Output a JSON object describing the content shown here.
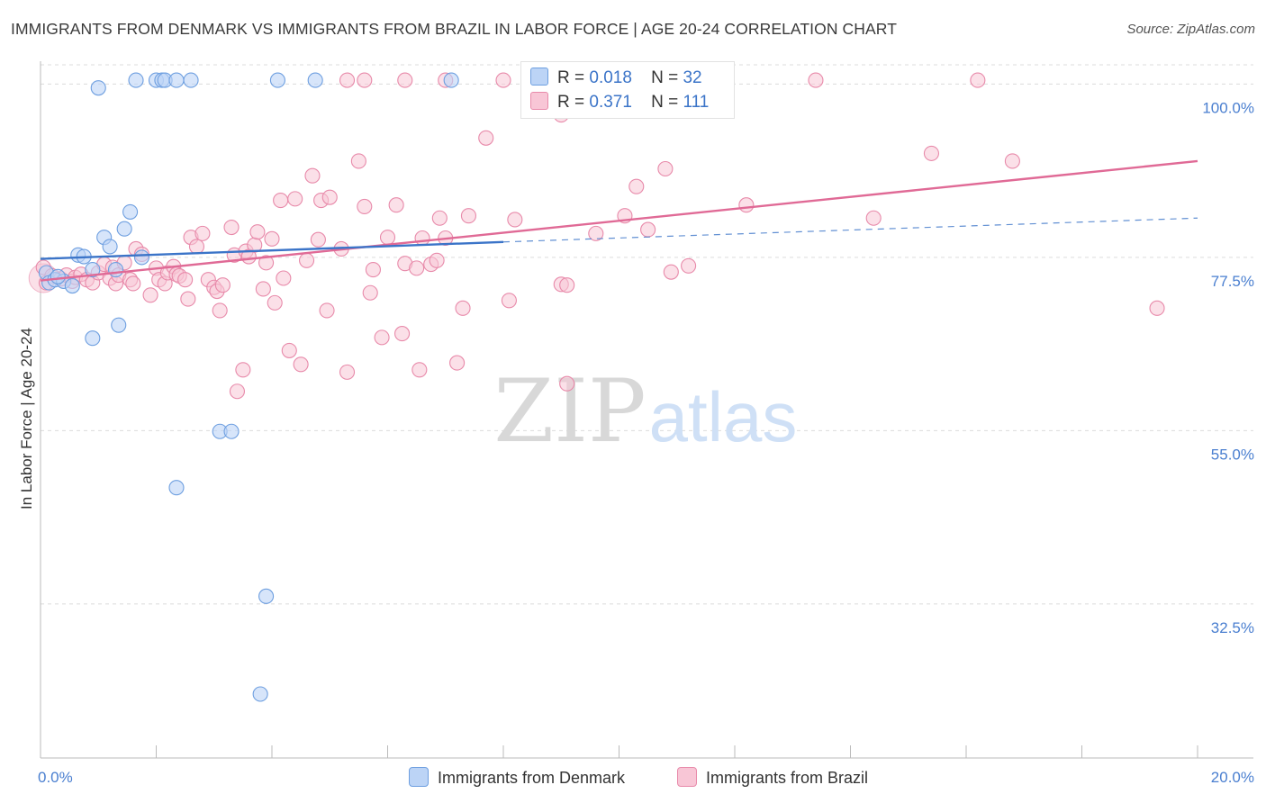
{
  "title": "IMMIGRANTS FROM DENMARK VS IMMIGRANTS FROM BRAZIL IN LABOR FORCE | AGE 20-24 CORRELATION CHART",
  "source": "Source: ZipAtlas.com",
  "watermark": {
    "zip": "ZIP",
    "atlas": "atlas"
  },
  "legend_top": {
    "rows": [
      {
        "r_label": "R =",
        "r_value": "0.018",
        "n_label": "N =",
        "n_value": "32"
      },
      {
        "r_label": "R =",
        "r_value": "0.371",
        "n_label": "N =",
        "n_value": "111"
      }
    ]
  },
  "legend_bottom": {
    "denmark": "Immigrants from Denmark",
    "brazil": "Immigrants from Brazil"
  },
  "colors": {
    "denmark_fill": "#bcd4f6",
    "denmark_stroke": "#6e9fe0",
    "denmark_line": "#3b74c8",
    "brazil_fill": "#f8c6d6",
    "brazil_stroke": "#e88aaa",
    "brazil_line": "#e06a96",
    "tick_text": "#4a7fd0"
  },
  "chart_data": {
    "type": "scatter",
    "title": "IMMIGRANTS FROM DENMARK VS IMMIGRANTS FROM BRAZIL IN LABOR FORCE | AGE 20-24 CORRELATION CHART",
    "xlabel": "",
    "ylabel": "In Labor Force | Age 20-24",
    "xlim": [
      0,
      20
    ],
    "ylim": [
      12.5,
      102.5
    ],
    "x_tick_labels": [
      "0.0%",
      "20.0%"
    ],
    "y_ticks": [
      32.5,
      55.0,
      77.5,
      100.0
    ],
    "y_tick_labels": [
      "32.5%",
      "55.0%",
      "77.5%",
      "100.0%"
    ],
    "grid": true,
    "legend": "top-center",
    "series": [
      {
        "name": "Immigrants from Denmark",
        "R": 0.018,
        "N": 32,
        "trend": {
          "x": [
            0,
            8
          ],
          "y": [
            77.3,
            79.5
          ],
          "extended_x": [
            8,
            20
          ],
          "extended_y": [
            79.5,
            82.6
          ]
        },
        "points": [
          [
            0.1,
            75.5
          ],
          [
            0.15,
            74.2
          ],
          [
            0.25,
            74.6
          ],
          [
            0.4,
            74.4
          ],
          [
            0.55,
            73.8
          ],
          [
            0.65,
            77.8
          ],
          [
            0.75,
            77.6
          ],
          [
            0.9,
            75.9
          ],
          [
            0.9,
            67.0
          ],
          [
            1.0,
            99.5
          ],
          [
            1.1,
            80.1
          ],
          [
            1.2,
            78.9
          ],
          [
            1.3,
            75.9
          ],
          [
            1.35,
            68.7
          ],
          [
            1.45,
            81.2
          ],
          [
            1.55,
            83.4
          ],
          [
            1.65,
            100.5
          ],
          [
            1.75,
            77.5
          ],
          [
            2.0,
            100.5
          ],
          [
            2.1,
            100.5
          ],
          [
            2.15,
            100.5
          ],
          [
            2.35,
            100.5
          ],
          [
            2.35,
            47.6
          ],
          [
            2.6,
            100.5
          ],
          [
            3.1,
            54.9
          ],
          [
            3.3,
            54.9
          ],
          [
            3.8,
            20.8
          ],
          [
            3.9,
            33.5
          ],
          [
            4.1,
            100.5
          ],
          [
            4.75,
            100.5
          ],
          [
            7.1,
            100.5
          ],
          [
            0.3,
            75.0
          ]
        ]
      },
      {
        "name": "Immigrants from Brazil",
        "R": 0.371,
        "N": 111,
        "trend": {
          "x": [
            0,
            20
          ],
          "y": [
            74.5,
            90.0
          ]
        },
        "points": [
          [
            0.05,
            76.2
          ],
          [
            0.1,
            74.2
          ],
          [
            0.2,
            75.1
          ],
          [
            0.35,
            74.7
          ],
          [
            0.45,
            75.2
          ],
          [
            0.55,
            74.4
          ],
          [
            0.6,
            74.9
          ],
          [
            0.7,
            75.3
          ],
          [
            0.8,
            74.6
          ],
          [
            0.9,
            74.2
          ],
          [
            1.0,
            75.5
          ],
          [
            1.1,
            76.6
          ],
          [
            1.2,
            74.8
          ],
          [
            1.25,
            76.2
          ],
          [
            1.3,
            74.1
          ],
          [
            1.35,
            75.2
          ],
          [
            1.45,
            76.8
          ],
          [
            1.55,
            74.6
          ],
          [
            1.6,
            74.1
          ],
          [
            1.65,
            78.6
          ],
          [
            1.75,
            77.9
          ],
          [
            1.9,
            72.6
          ],
          [
            2.0,
            76.1
          ],
          [
            2.05,
            74.6
          ],
          [
            2.15,
            74.1
          ],
          [
            2.2,
            75.5
          ],
          [
            2.3,
            76.3
          ],
          [
            2.35,
            75.3
          ],
          [
            2.4,
            75.1
          ],
          [
            2.5,
            74.6
          ],
          [
            2.55,
            72.1
          ],
          [
            2.6,
            80.1
          ],
          [
            2.7,
            78.9
          ],
          [
            2.8,
            80.6
          ],
          [
            2.9,
            74.6
          ],
          [
            3.0,
            73.6
          ],
          [
            3.05,
            73.1
          ],
          [
            3.1,
            70.6
          ],
          [
            3.15,
            73.9
          ],
          [
            3.3,
            81.4
          ],
          [
            3.35,
            77.8
          ],
          [
            3.4,
            60.1
          ],
          [
            3.5,
            62.9
          ],
          [
            3.55,
            78.3
          ],
          [
            3.6,
            77.6
          ],
          [
            3.7,
            79.1
          ],
          [
            3.75,
            80.8
          ],
          [
            3.85,
            73.4
          ],
          [
            3.9,
            76.8
          ],
          [
            4.0,
            79.9
          ],
          [
            4.05,
            71.6
          ],
          [
            4.15,
            84.9
          ],
          [
            4.2,
            74.8
          ],
          [
            4.3,
            65.4
          ],
          [
            4.4,
            85.1
          ],
          [
            4.5,
            63.6
          ],
          [
            4.6,
            77.1
          ],
          [
            4.7,
            88.1
          ],
          [
            4.8,
            79.8
          ],
          [
            4.85,
            84.9
          ],
          [
            4.95,
            70.6
          ],
          [
            5.0,
            85.3
          ],
          [
            5.2,
            78.6
          ],
          [
            5.3,
            62.6
          ],
          [
            5.5,
            90.0
          ],
          [
            5.6,
            84.1
          ],
          [
            5.7,
            72.9
          ],
          [
            5.75,
            75.9
          ],
          [
            5.9,
            67.1
          ],
          [
            6.0,
            80.1
          ],
          [
            6.15,
            84.3
          ],
          [
            6.25,
            67.6
          ],
          [
            6.3,
            76.7
          ],
          [
            6.5,
            76.1
          ],
          [
            6.55,
            62.9
          ],
          [
            6.6,
            80.0
          ],
          [
            6.75,
            76.6
          ],
          [
            6.85,
            77.1
          ],
          [
            6.9,
            82.6
          ],
          [
            7.0,
            80.0
          ],
          [
            7.2,
            63.8
          ],
          [
            7.3,
            70.9
          ],
          [
            7.4,
            82.9
          ],
          [
            7.7,
            93.0
          ],
          [
            8.1,
            71.9
          ],
          [
            8.2,
            82.4
          ],
          [
            9.0,
            74.0
          ],
          [
            9.1,
            61.1
          ],
          [
            9.1,
            73.9
          ],
          [
            9.6,
            80.6
          ],
          [
            10.1,
            82.9
          ],
          [
            10.3,
            86.7
          ],
          [
            10.5,
            81.1
          ],
          [
            10.8,
            89.0
          ],
          [
            10.9,
            75.6
          ],
          [
            11.2,
            76.4
          ],
          [
            12.2,
            84.3
          ],
          [
            14.4,
            82.6
          ],
          [
            15.4,
            91.0
          ],
          [
            16.8,
            90.0
          ],
          [
            19.3,
            70.9
          ],
          [
            5.3,
            100.5
          ],
          [
            5.6,
            100.5
          ],
          [
            6.3,
            100.5
          ],
          [
            7.0,
            100.5
          ],
          [
            8.0,
            100.5
          ],
          [
            9.3,
            100.5
          ],
          [
            11.0,
            100.5
          ],
          [
            13.4,
            100.5
          ],
          [
            16.2,
            100.5
          ],
          [
            9.0,
            96.0
          ]
        ]
      }
    ]
  }
}
